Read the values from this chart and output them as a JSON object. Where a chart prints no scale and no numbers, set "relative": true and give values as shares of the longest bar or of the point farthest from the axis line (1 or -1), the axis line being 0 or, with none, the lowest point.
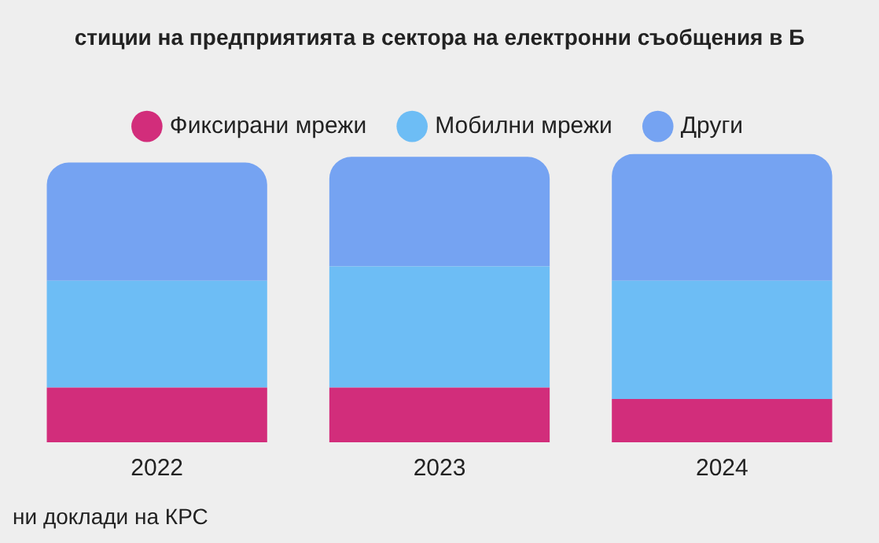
{
  "chart_data": {
    "type": "bar",
    "title": "стиции на предприятията в сектора на електронни съобщения в Б",
    "categories": [
      "2022",
      "2023",
      "2024"
    ],
    "stacked": true,
    "relative": true,
    "legend": "top",
    "grid": false,
    "series": [
      {
        "name": "Фиксирани мрежи",
        "color": "#d22d7b",
        "values": [
          0.19,
          0.19,
          0.15
        ]
      },
      {
        "name": "Мобилни мрежи",
        "color": "#6dbdf5",
        "values": [
          0.37,
          0.42,
          0.41
        ]
      },
      {
        "name": "Други",
        "color": "#75a3f2",
        "values": [
          0.41,
          0.38,
          0.44
        ]
      }
    ],
    "annotations": [
      "ни доклади на КРС"
    ]
  }
}
